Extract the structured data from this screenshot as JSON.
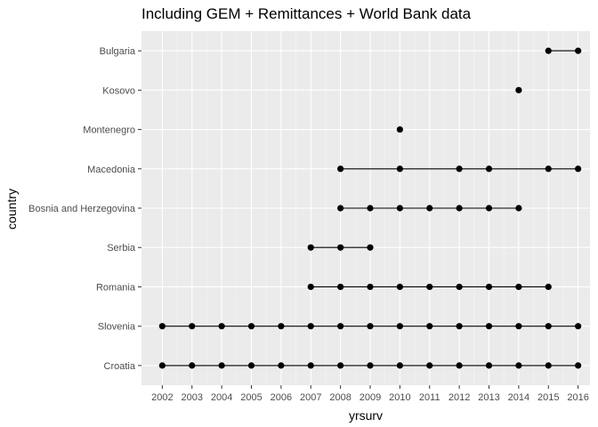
{
  "chart_data": {
    "type": "scatter",
    "title": "Including GEM + Remittances + World Bank data",
    "xlabel": "yrsurv",
    "ylabel": "country",
    "x_ticks": [
      2002,
      2003,
      2004,
      2005,
      2006,
      2007,
      2008,
      2009,
      2010,
      2011,
      2012,
      2013,
      2014,
      2015,
      2016
    ],
    "xlim": [
      2001.3,
      2016.4
    ],
    "categories": [
      "Croatia",
      "Slovenia",
      "Romania",
      "Serbia",
      "Bosnia and Herzegovina",
      "Macedonia",
      "Montenegro",
      "Kosovo",
      "Bulgaria"
    ],
    "series": [
      {
        "country": "Croatia",
        "years": [
          2002,
          2003,
          2004,
          2005,
          2006,
          2007,
          2008,
          2009,
          2010,
          2011,
          2012,
          2013,
          2014,
          2015,
          2016
        ]
      },
      {
        "country": "Slovenia",
        "years": [
          2002,
          2003,
          2004,
          2005,
          2006,
          2007,
          2008,
          2009,
          2010,
          2011,
          2012,
          2013,
          2014,
          2015,
          2016
        ]
      },
      {
        "country": "Romania",
        "years": [
          2007,
          2008,
          2009,
          2010,
          2011,
          2012,
          2013,
          2014,
          2015
        ]
      },
      {
        "country": "Serbia",
        "years": [
          2007,
          2008,
          2009
        ]
      },
      {
        "country": "Bosnia and Herzegovina",
        "years": [
          2008,
          2009,
          2010,
          2011,
          2012,
          2013,
          2014
        ]
      },
      {
        "country": "Macedonia",
        "years": [
          2008,
          2010,
          2012,
          2013,
          2015,
          2016
        ]
      },
      {
        "country": "Montenegro",
        "years": [
          2010
        ]
      },
      {
        "country": "Kosovo",
        "years": [
          2014
        ]
      },
      {
        "country": "Bulgaria",
        "years": [
          2015,
          2016
        ]
      }
    ],
    "grid": true,
    "legend": "none",
    "colors": {
      "panel": "#ebebeb",
      "grid_major": "#ffffff",
      "grid_minor": "#f5f5f5",
      "mark": "#000000",
      "tick_label": "#4d4d4d"
    }
  }
}
